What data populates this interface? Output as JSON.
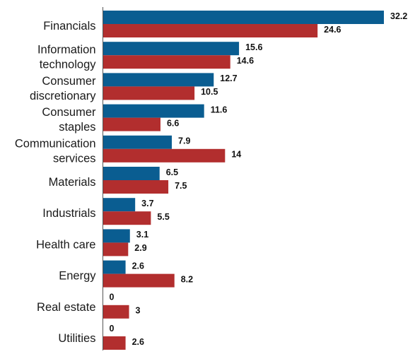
{
  "chart_data": {
    "type": "bar",
    "orientation": "horizontal",
    "categories": [
      [
        "Financials"
      ],
      [
        "Information",
        "technology"
      ],
      [
        "Consumer",
        "discretionary"
      ],
      [
        "Consumer",
        "staples"
      ],
      [
        "Communication",
        "services"
      ],
      [
        "Materials"
      ],
      [
        "Industrials"
      ],
      [
        "Health care"
      ],
      [
        "Energy"
      ],
      [
        "Real estate"
      ],
      [
        "Utilities"
      ]
    ],
    "series": [
      {
        "color": "#0a5d91",
        "values": [
          32.2,
          15.6,
          12.7,
          11.6,
          7.9,
          6.5,
          3.7,
          3.1,
          2.6,
          0,
          0
        ]
      },
      {
        "color": "#b22e2e",
        "values": [
          24.6,
          14.6,
          10.5,
          6.6,
          14,
          7.5,
          5.5,
          2.9,
          8.2,
          3,
          2.6
        ]
      }
    ],
    "data_labels": [
      [
        "32.2",
        "15.6",
        "12.7",
        "11.6",
        "7.9",
        "6.5",
        "3.7",
        "3.1",
        "2.6",
        "0",
        "0"
      ],
      [
        "24.6",
        "14.6",
        "10.5",
        "6.6",
        "14",
        "7.5",
        "5.5",
        "2.9",
        "8.2",
        "3",
        "2.6"
      ]
    ],
    "xlim": [
      0,
      32.2
    ],
    "grid": false,
    "legend": "none"
  }
}
